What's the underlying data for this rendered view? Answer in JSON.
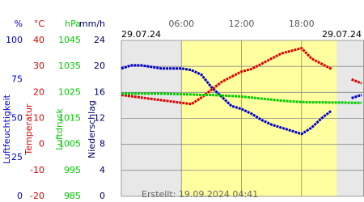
{
  "chart_data": {
    "type": "line",
    "date_left": "29.07.24",
    "date_right": "29.07.24",
    "footer": "Erstellt: 19.09.2024 04:41",
    "xlim": [
      0,
      24
    ],
    "xticks": [
      {
        "value": 6,
        "label": "06:00"
      },
      {
        "value": 12,
        "label": "12:00"
      },
      {
        "value": 18,
        "label": "18:00"
      }
    ],
    "highlight_x": [
      6,
      21.5
    ],
    "grid": true,
    "axes": [
      {
        "unit": "%",
        "label": "Luftfeuchtigkeit",
        "color": "#0000cc",
        "lim": [
          0,
          100
        ],
        "ticks": [
          0,
          25,
          50,
          75,
          100
        ]
      },
      {
        "unit": "°C",
        "label": "Temperatur",
        "color": "#dd0000",
        "lim": [
          -20,
          40
        ],
        "ticks": [
          -20,
          -10,
          0,
          10,
          20,
          30,
          40
        ]
      },
      {
        "unit": "hPa",
        "label": "Luftdruck",
        "color": "#00cc00",
        "lim": [
          985,
          1045
        ],
        "ticks": [
          985,
          995,
          1005,
          1015,
          1025,
          1035,
          1045
        ]
      },
      {
        "unit": "mm/h",
        "label": "Niederschlag",
        "color": "#000066",
        "lim": [
          0,
          24
        ],
        "ticks": [
          0,
          4,
          8,
          12,
          16,
          20,
          24
        ]
      }
    ],
    "x": [
      0,
      1,
      2,
      3,
      4,
      5,
      6,
      7,
      8,
      9,
      10,
      11,
      12,
      13,
      14,
      15,
      16,
      17,
      18,
      19,
      20,
      21,
      22,
      23,
      24
    ],
    "series": [
      {
        "name": "Luftfeuchtigkeit",
        "color": "#0000cc",
        "axis": 0,
        "values": [
          82,
          84,
          84,
          83,
          82,
          82,
          82,
          81,
          78,
          70,
          64,
          58,
          56,
          53,
          49,
          46,
          44,
          42,
          40,
          44,
          50,
          55,
          null,
          63,
          65
        ]
      },
      {
        "name": "Temperatur",
        "color": "#dd0000",
        "axis": 1,
        "values": [
          19,
          18.5,
          18,
          17.5,
          17,
          16.5,
          16,
          15.5,
          18,
          21,
          24,
          26,
          28,
          29,
          31,
          33,
          35,
          36,
          37,
          33,
          31,
          29,
          null,
          25,
          23.5
        ]
      },
      {
        "name": "Luftdruck",
        "color": "#00cc00",
        "axis": 2,
        "values": [
          1024.5,
          1024.5,
          1024.5,
          1024.5,
          1024.5,
          1024.4,
          1024.3,
          1024.2,
          1024,
          1024,
          1023.8,
          1023.6,
          1023.4,
          1023,
          1022.6,
          1022.2,
          1021.8,
          1021.5,
          1021.3,
          1021.2,
          1021.2,
          1021.1,
          1021.1,
          1021,
          1021
        ]
      }
    ]
  }
}
